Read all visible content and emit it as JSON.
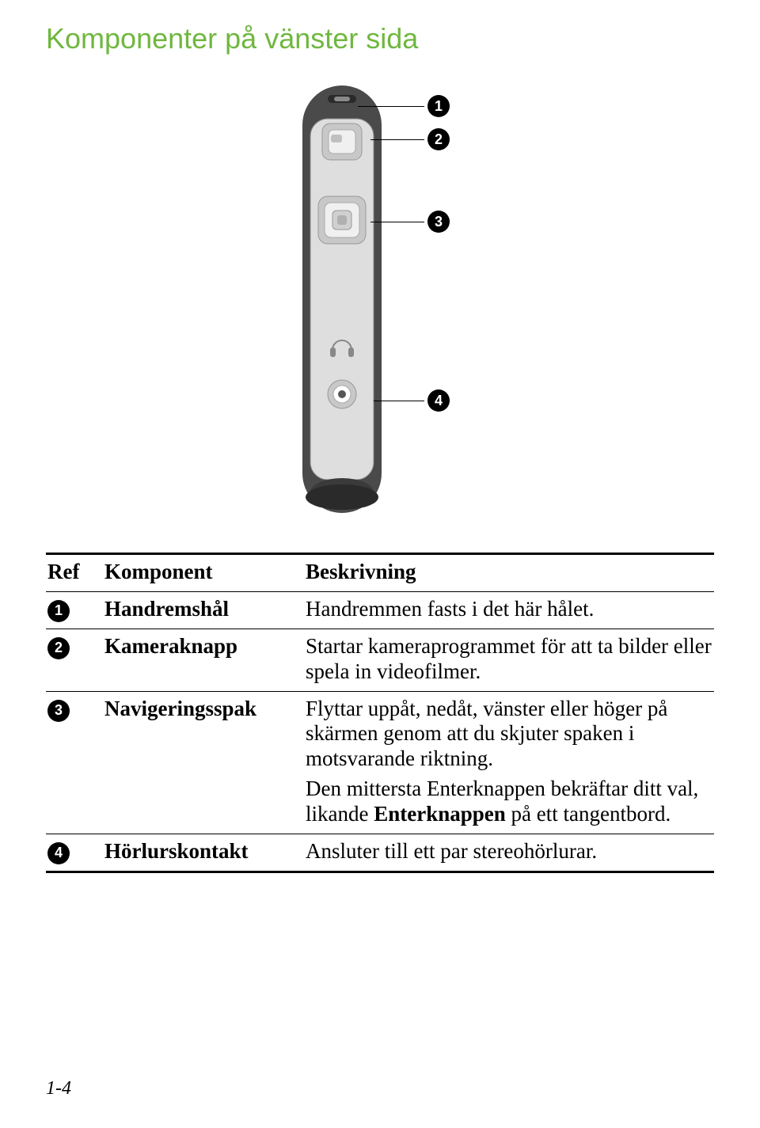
{
  "title": "Komponenter på vänster sida",
  "table": {
    "headers": {
      "ref": "Ref",
      "komponent": "Komponent",
      "beskrivning": "Beskrivning"
    },
    "rows": [
      {
        "ref": "1",
        "komponent": "Handremshål",
        "beskrivning": [
          "Handremmen fasts i det här hålet."
        ]
      },
      {
        "ref": "2",
        "komponent": "Kameraknapp",
        "beskrivning": [
          "Startar kameraprogrammet för att ta bilder eller spela in videofilmer."
        ]
      },
      {
        "ref": "3",
        "komponent": "Navigeringsspak",
        "beskrivning": [
          "Flyttar uppåt, nedåt, vänster eller höger på skärmen genom att du skjuter spaken i motsvarande riktning.",
          "Den mittersta Enterknappen bekräftar ditt val, likande <b>Enterknappen</b> på ett tangentbord."
        ]
      },
      {
        "ref": "4",
        "komponent": "Hörlurskontakt",
        "beskrivning": [
          "Ansluter till ett par stereohörlurar."
        ]
      }
    ]
  },
  "callouts": [
    "1",
    "2",
    "3",
    "4"
  ],
  "page_number": "1-4",
  "colors": {
    "title": "#6fb73f",
    "device_light": "#e8e8e8",
    "device_mid": "#b8b8b8",
    "device_dark": "#4a4a4a",
    "device_darker": "#2a2a2a"
  }
}
